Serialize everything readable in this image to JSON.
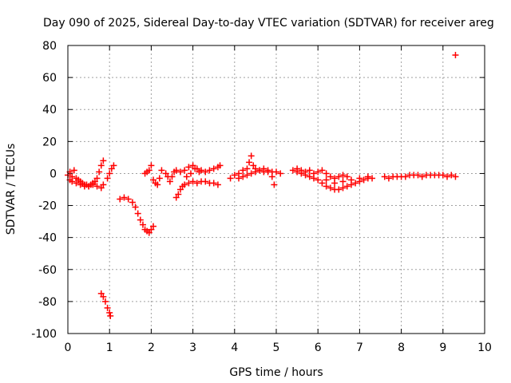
{
  "chart_data": {
    "type": "scatter",
    "title": "Day 090 of 2025, Sidereal Day-to-day VTEC variation (SDTVAR) for receiver areg",
    "xlabel": "GPS time / hours",
    "ylabel": "SDTVAR / TECUs",
    "xlim": [
      0,
      10
    ],
    "ylim": [
      -100,
      80
    ],
    "xticks": [
      0,
      1,
      2,
      3,
      4,
      5,
      6,
      7,
      8,
      9,
      10
    ],
    "yticks": [
      -100,
      -80,
      -60,
      -40,
      -20,
      0,
      20,
      40,
      60,
      80
    ],
    "grid": true,
    "marker": "+",
    "color": "#ff0000",
    "series": [
      {
        "name": "SDTVAR",
        "points": [
          [
            0.0,
            -1
          ],
          [
            0.05,
            1
          ],
          [
            0.1,
            -2
          ],
          [
            0.15,
            2
          ],
          [
            0.2,
            -3
          ],
          [
            0.25,
            -4
          ],
          [
            0.3,
            -5
          ],
          [
            0.35,
            -6
          ],
          [
            0.4,
            -7
          ],
          [
            0.45,
            -7
          ],
          [
            0.5,
            -8
          ],
          [
            0.55,
            -7
          ],
          [
            0.6,
            -6
          ],
          [
            0.65,
            -5
          ],
          [
            0.7,
            -3
          ],
          [
            0.75,
            1
          ],
          [
            0.8,
            5
          ],
          [
            0.85,
            8
          ],
          [
            0.05,
            -4
          ],
          [
            0.1,
            -5
          ],
          [
            0.2,
            -6
          ],
          [
            0.3,
            -7
          ],
          [
            0.4,
            -8
          ],
          [
            0.5,
            -8
          ],
          [
            0.6,
            -7
          ],
          [
            0.7,
            -8
          ],
          [
            0.8,
            -9
          ],
          [
            0.85,
            -7
          ],
          [
            0.95,
            -3
          ],
          [
            1.0,
            0
          ],
          [
            1.05,
            3
          ],
          [
            1.1,
            5
          ],
          [
            1.25,
            -16
          ],
          [
            1.35,
            -15
          ],
          [
            1.45,
            -16
          ],
          [
            1.55,
            -18
          ],
          [
            1.62,
            -21
          ],
          [
            1.68,
            -25
          ],
          [
            1.74,
            -29
          ],
          [
            1.8,
            -32
          ],
          [
            1.85,
            -35
          ],
          [
            1.9,
            -36
          ],
          [
            1.95,
            -37
          ],
          [
            2.0,
            -35
          ],
          [
            2.05,
            -33
          ],
          [
            0.8,
            -75
          ],
          [
            0.85,
            -77
          ],
          [
            0.9,
            -80
          ],
          [
            0.95,
            -84
          ],
          [
            1.0,
            -87
          ],
          [
            1.02,
            -89
          ],
          [
            1.85,
            0
          ],
          [
            1.9,
            1
          ],
          [
            1.95,
            2
          ],
          [
            2.0,
            5
          ],
          [
            2.05,
            -4
          ],
          [
            2.1,
            -6
          ],
          [
            2.15,
            -7
          ],
          [
            2.2,
            -3
          ],
          [
            2.25,
            2
          ],
          [
            2.35,
            0
          ],
          [
            2.4,
            -2
          ],
          [
            2.45,
            -5
          ],
          [
            2.5,
            -2
          ],
          [
            2.55,
            1
          ],
          [
            2.6,
            2
          ],
          [
            2.7,
            1
          ],
          [
            2.8,
            2
          ],
          [
            2.9,
            4
          ],
          [
            3.0,
            5
          ],
          [
            3.1,
            3
          ],
          [
            3.2,
            2
          ],
          [
            3.3,
            1
          ],
          [
            3.4,
            2
          ],
          [
            3.5,
            3
          ],
          [
            3.6,
            4
          ],
          [
            3.65,
            5
          ],
          [
            2.6,
            -15
          ],
          [
            2.65,
            -13
          ],
          [
            2.7,
            -10
          ],
          [
            2.75,
            -8
          ],
          [
            2.8,
            -7
          ],
          [
            2.9,
            -6
          ],
          [
            3.0,
            -5
          ],
          [
            3.1,
            -6
          ],
          [
            3.2,
            -5
          ],
          [
            3.3,
            -5
          ],
          [
            3.4,
            -6
          ],
          [
            3.5,
            -6
          ],
          [
            3.6,
            -7
          ],
          [
            2.85,
            -2
          ],
          [
            2.95,
            0
          ],
          [
            3.05,
            3
          ],
          [
            3.15,
            1
          ],
          [
            3.9,
            -3
          ],
          [
            4.0,
            -1
          ],
          [
            4.1,
            0
          ],
          [
            4.2,
            2
          ],
          [
            4.3,
            3
          ],
          [
            4.35,
            7
          ],
          [
            4.4,
            11
          ],
          [
            4.45,
            5
          ],
          [
            4.1,
            -3
          ],
          [
            4.2,
            -2
          ],
          [
            4.3,
            -1
          ],
          [
            4.4,
            0
          ],
          [
            4.5,
            1
          ],
          [
            4.6,
            2
          ],
          [
            4.7,
            1
          ],
          [
            4.8,
            2
          ],
          [
            4.9,
            1
          ],
          [
            5.0,
            1
          ],
          [
            5.1,
            0
          ],
          [
            4.5,
            3
          ],
          [
            4.6,
            2
          ],
          [
            4.7,
            3
          ],
          [
            4.8,
            1
          ],
          [
            4.9,
            -2
          ],
          [
            4.95,
            -7
          ],
          [
            5.4,
            2
          ],
          [
            5.5,
            1
          ],
          [
            5.6,
            0
          ],
          [
            5.7,
            -1
          ],
          [
            5.8,
            -2
          ],
          [
            5.9,
            -3
          ],
          [
            6.0,
            -4
          ],
          [
            6.1,
            -6
          ],
          [
            6.2,
            -8
          ],
          [
            6.3,
            -9
          ],
          [
            6.4,
            -10
          ],
          [
            6.5,
            -10
          ],
          [
            6.6,
            -9
          ],
          [
            6.7,
            -8
          ],
          [
            6.8,
            -7
          ],
          [
            6.9,
            -6
          ],
          [
            7.0,
            -5
          ],
          [
            7.1,
            -4
          ],
          [
            7.2,
            -3
          ],
          [
            7.3,
            -3
          ],
          [
            5.5,
            3
          ],
          [
            5.6,
            2
          ],
          [
            5.7,
            1
          ],
          [
            5.8,
            2
          ],
          [
            5.9,
            0
          ],
          [
            6.0,
            1
          ],
          [
            6.1,
            2
          ],
          [
            6.2,
            0
          ],
          [
            6.3,
            -2
          ],
          [
            6.4,
            -3
          ],
          [
            6.5,
            -2
          ],
          [
            6.6,
            -1
          ],
          [
            6.7,
            -2
          ],
          [
            6.2,
            -4
          ],
          [
            6.4,
            -6
          ],
          [
            6.6,
            -5
          ],
          [
            6.8,
            -4
          ],
          [
            7.0,
            -3
          ],
          [
            7.2,
            -2
          ],
          [
            7.6,
            -2
          ],
          [
            7.8,
            -2
          ],
          [
            8.0,
            -2
          ],
          [
            8.2,
            -1
          ],
          [
            8.4,
            -1
          ],
          [
            8.6,
            -1
          ],
          [
            8.8,
            -1
          ],
          [
            9.0,
            -1
          ],
          [
            9.2,
            -1
          ],
          [
            9.3,
            -2
          ],
          [
            7.7,
            -3
          ],
          [
            7.9,
            -2
          ],
          [
            8.1,
            -2
          ],
          [
            8.3,
            -1
          ],
          [
            8.5,
            -2
          ],
          [
            8.7,
            -1
          ],
          [
            8.9,
            -1
          ],
          [
            9.1,
            -2
          ],
          [
            9.3,
            74
          ]
        ]
      }
    ]
  }
}
